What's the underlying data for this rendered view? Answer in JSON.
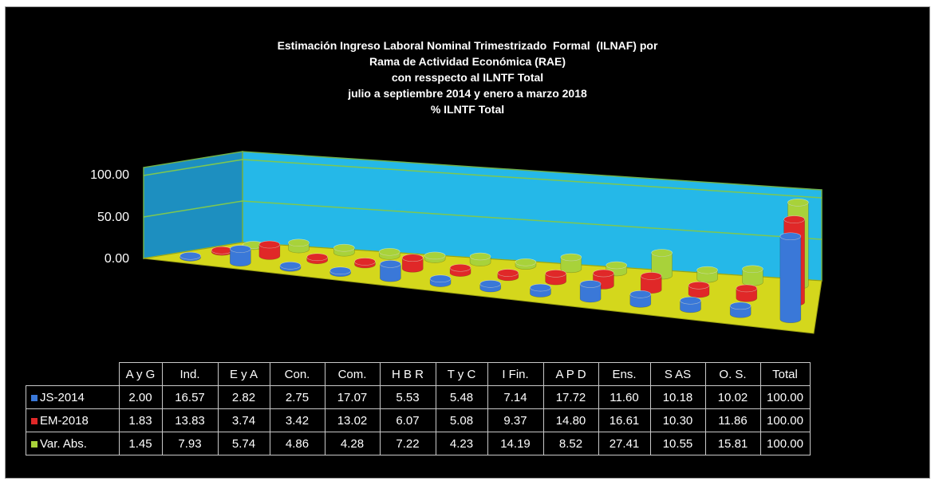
{
  "chart_data": {
    "type": "bar",
    "title_lines": [
      "Estimación Ingreso Laboral Nominal Trimestrizado  Formal  (ILNAF) por",
      "Rama de Actividad Económica (RAE)",
      "con resspecto al ILNTF Total",
      "julio a septiembre 2014 y enero a marzo 2018",
      "% ILNTF Total"
    ],
    "ylim": [
      0,
      100
    ],
    "yticks": [
      "100.00",
      "50.00",
      "0.00"
    ],
    "categories": [
      "A y G",
      "Ind.",
      "E y A",
      "Con.",
      "Com.",
      "H B R",
      "T y C",
      "I Fin.",
      "A P D",
      "Ens.",
      "S AS",
      "O. S.",
      "Total"
    ],
    "series": [
      {
        "name": "JS-2014",
        "color": "#3a78d8",
        "values": [
          2.0,
          16.57,
          2.82,
          2.75,
          17.07,
          5.53,
          5.48,
          7.14,
          17.72,
          11.6,
          10.18,
          10.02,
          100.0
        ],
        "labels": [
          "2.00",
          "16.57",
          "2.82",
          "2.75",
          "17.07",
          "5.53",
          "5.48",
          "7.14",
          "17.72",
          "11.60",
          "10.18",
          "10.02",
          "100.00"
        ]
      },
      {
        "name": "EM-2018",
        "color": "#e02828",
        "values": [
          1.83,
          13.83,
          3.74,
          3.42,
          13.02,
          6.07,
          5.08,
          9.37,
          14.8,
          16.61,
          10.3,
          11.86,
          100.0
        ],
        "labels": [
          "1.83",
          "13.83",
          "3.74",
          "3.42",
          "13.02",
          "6.07",
          "5.08",
          "9.37",
          "14.80",
          "16.61",
          "10.30",
          "11.86",
          "100.00"
        ]
      },
      {
        "name": "Var. Abs.",
        "color": "#a8d23a",
        "values": [
          1.45,
          7.93,
          5.74,
          4.86,
          4.28,
          7.22,
          4.23,
          14.19,
          8.52,
          27.41,
          10.55,
          15.81,
          100.0
        ],
        "labels": [
          "1.45",
          "7.93",
          "5.74",
          "4.86",
          "4.28",
          "7.22",
          "4.23",
          "14.19",
          "8.52",
          "27.41",
          "10.55",
          "15.81",
          "100.00"
        ]
      }
    ],
    "wall_color": "#25b8e8",
    "floor_color": "#d4d71c",
    "grid": true,
    "legend": "data-table"
  }
}
